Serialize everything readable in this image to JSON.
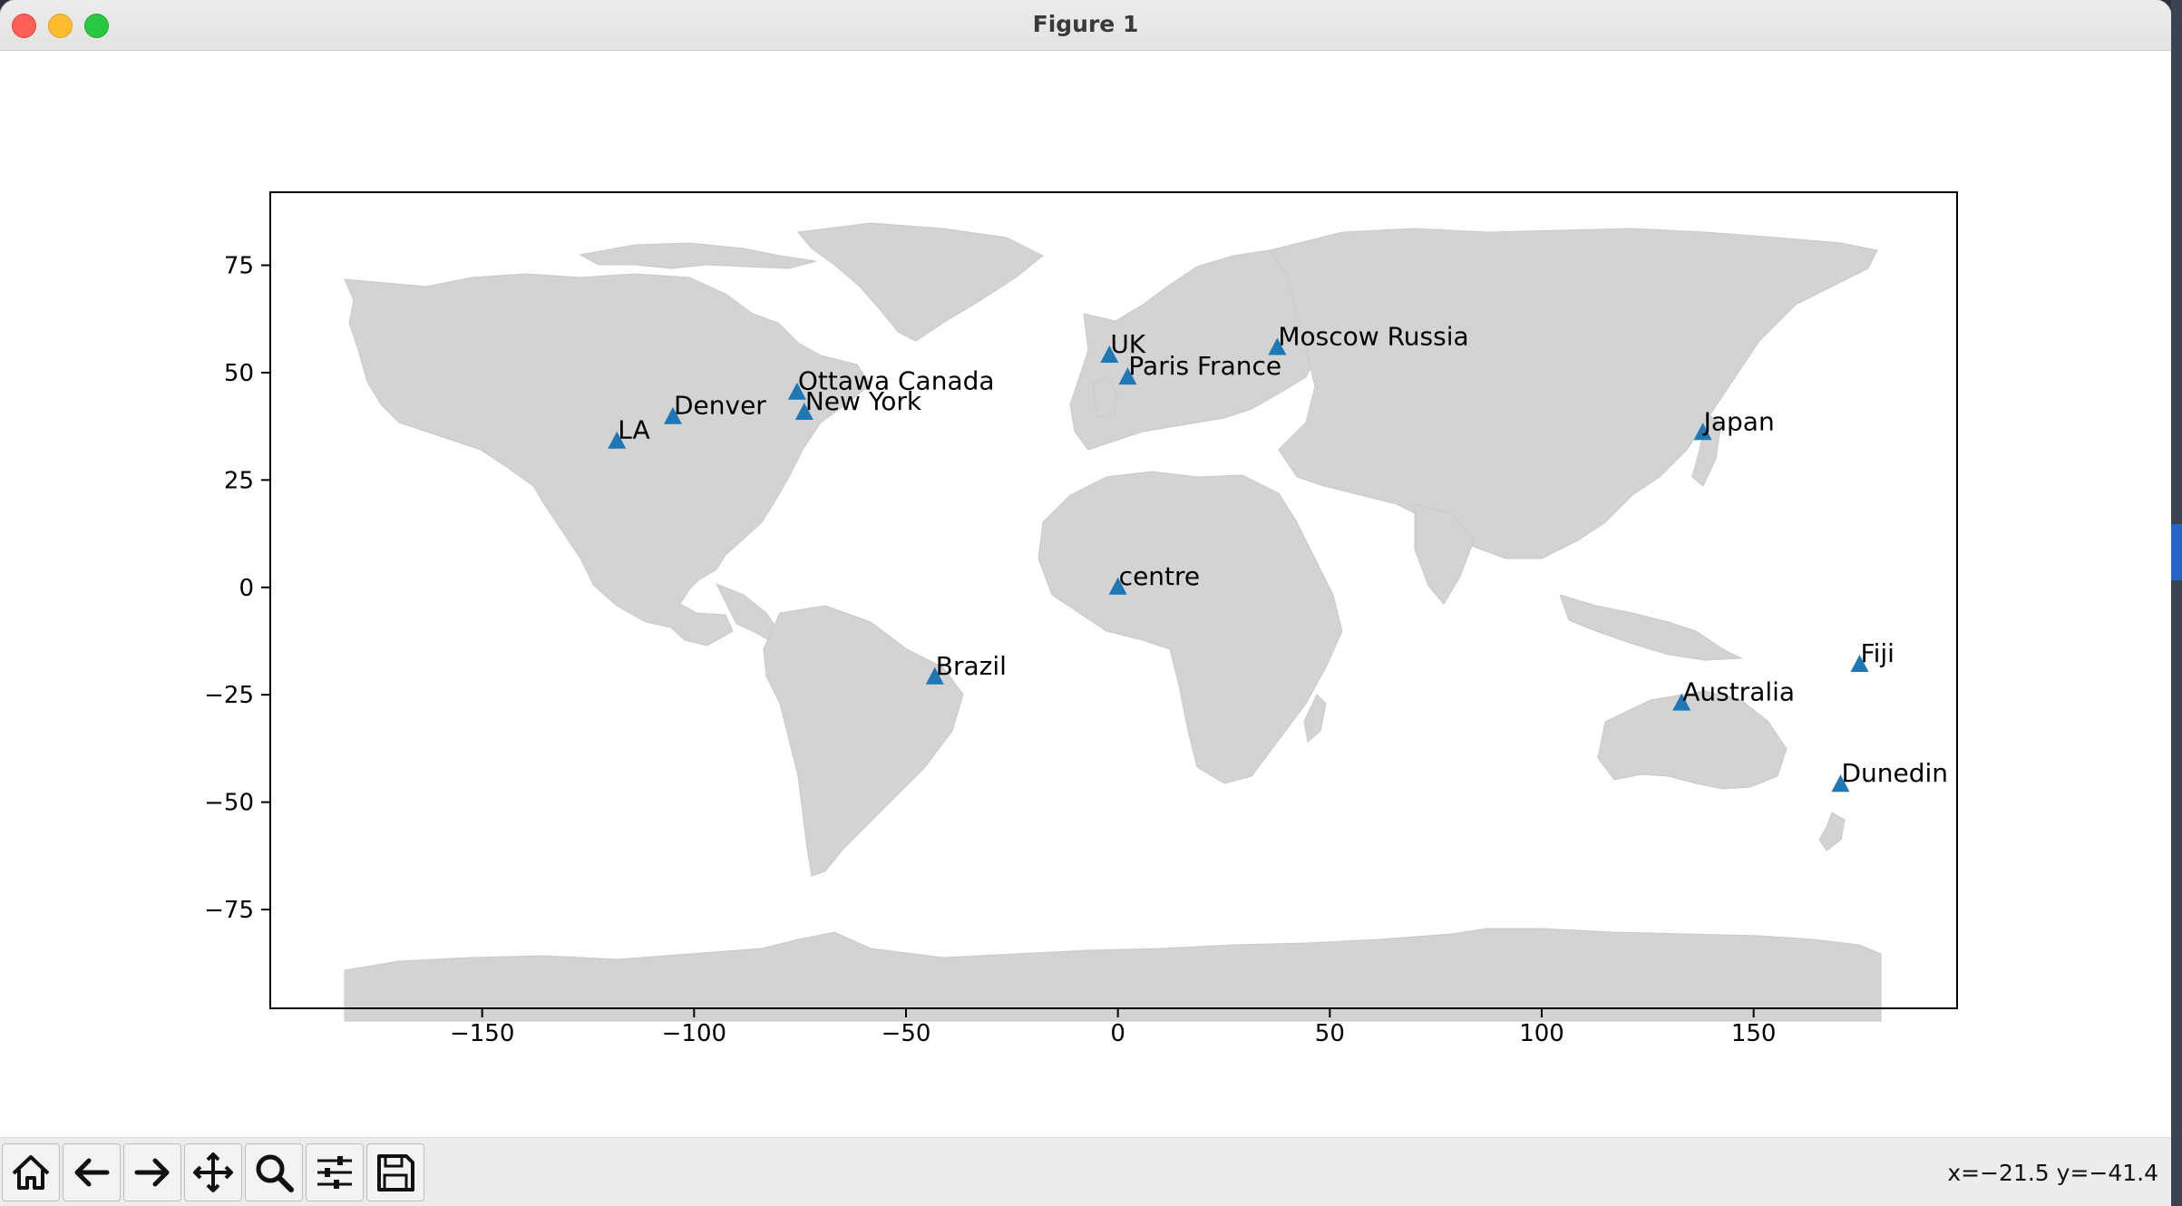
{
  "window": {
    "title": "Figure 1"
  },
  "toolbar": {
    "buttons": [
      {
        "name": "home",
        "icon": "home-icon"
      },
      {
        "name": "back",
        "icon": "arrow-left-icon"
      },
      {
        "name": "forward",
        "icon": "arrow-right-icon"
      },
      {
        "name": "pan",
        "icon": "move-icon"
      },
      {
        "name": "zoom",
        "icon": "magnifier-icon"
      },
      {
        "name": "configure-subplots",
        "icon": "sliders-icon"
      },
      {
        "name": "save",
        "icon": "floppy-disk-icon"
      }
    ],
    "coords": "x=−21.5 y=−41.4"
  },
  "chart_data": {
    "type": "scatter",
    "marker": "triangle",
    "marker_color": "#1f77b4",
    "background_map": "world land masses",
    "land_color": "#d3d3d3",
    "xlim": [
      -200,
      198
    ],
    "ylim": [
      -98,
      92
    ],
    "xticks": [
      -150,
      -100,
      -50,
      0,
      50,
      100,
      150
    ],
    "xtick_labels": [
      "−150",
      "−100",
      "−50",
      "0",
      "50",
      "100",
      "150"
    ],
    "yticks": [
      75,
      50,
      25,
      0,
      -25,
      -50,
      -75
    ],
    "ytick_labels": [
      "75",
      "50",
      "25",
      "0",
      "−25",
      "−50",
      "−75"
    ],
    "points": [
      {
        "label": "LA",
        "x": -118.2,
        "y": 34.0
      },
      {
        "label": "Denver",
        "x": -105.0,
        "y": 39.7
      },
      {
        "label": "Ottawa Canada",
        "x": -75.7,
        "y": 45.4
      },
      {
        "label": "New York",
        "x": -74.0,
        "y": 40.7
      },
      {
        "label": "UK",
        "x": -2.0,
        "y": 54.0
      },
      {
        "label": "Paris France",
        "x": 2.3,
        "y": 48.9
      },
      {
        "label": "Moscow Russia",
        "x": 37.6,
        "y": 55.8
      },
      {
        "label": "Japan",
        "x": 138.0,
        "y": 36.0
      },
      {
        "label": "centre",
        "x": 0.0,
        "y": 0.0
      },
      {
        "label": "Brazil",
        "x": -43.2,
        "y": -20.9
      },
      {
        "label": "Fiji",
        "x": 175.0,
        "y": -18.0
      },
      {
        "label": "Australia",
        "x": 133.0,
        "y": -27.0
      },
      {
        "label": "Dunedin",
        "x": 170.5,
        "y": -45.9
      }
    ]
  }
}
